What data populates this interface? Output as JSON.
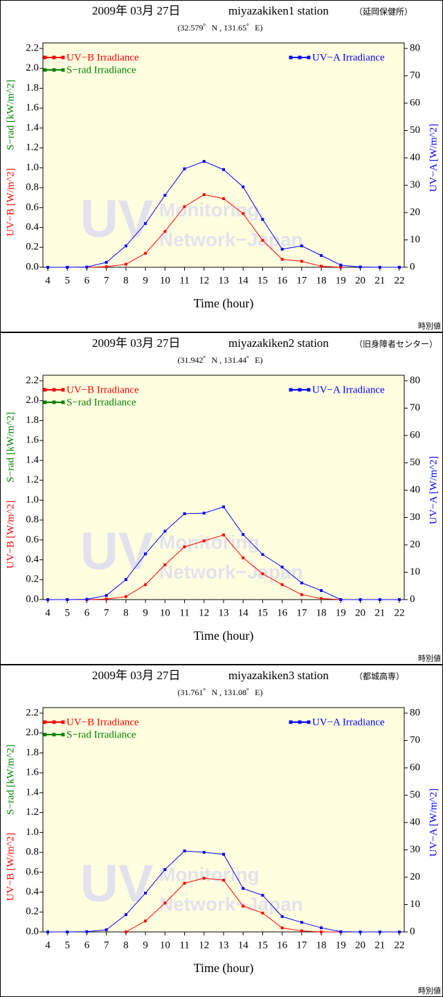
{
  "chart_data": [
    {
      "type": "line",
      "title_date": "2009年 03月 27日",
      "title_station": "miyazakiken1 station",
      "title_site": "（延岡保健所）",
      "subtitle": "(32.579゜N , 131.65゜E)",
      "xlabel": "Time (hour)",
      "ylabel": "UV−B [W/m^2]",
      "ylabel2": "S−rad [kW/m^2]",
      "y2label": "UV−A [W/m^2]",
      "corner_note": "時別値",
      "watermark": [
        "UV",
        "Monitoring",
        "Network−Japan"
      ],
      "x": [
        4,
        5,
        6,
        7,
        8,
        9,
        10,
        11,
        12,
        13,
        14,
        15,
        16,
        17,
        18,
        19,
        20,
        21,
        22
      ],
      "xlim": [
        3.75,
        22.25
      ],
      "xticks": [
        4,
        5,
        6,
        7,
        8,
        9,
        10,
        11,
        12,
        13,
        14,
        15,
        16,
        17,
        18,
        19,
        20,
        21,
        22
      ],
      "ylim": [
        0,
        2.2
      ],
      "yticks": [
        {
          "value": 0,
          "label": "0.0"
        },
        0.2,
        0.4,
        0.6,
        0.8,
        {
          "value": 1,
          "label": "1.0"
        },
        1.2,
        1.4,
        1.6,
        1.8,
        {
          "value": 2,
          "label": "2.0"
        },
        2.2
      ],
      "y2lim": [
        0,
        80
      ],
      "y2ticks": [
        0,
        10,
        20,
        30,
        40,
        50,
        60,
        70,
        80
      ],
      "series": [
        {
          "name": "UV−B Irradiance",
          "color": "#ff0000",
          "axis": "y",
          "values": [
            0,
            0,
            0,
            0.005,
            0.03,
            0.14,
            0.36,
            0.61,
            0.73,
            0.69,
            0.54,
            0.27,
            0.08,
            0.06,
            0.01,
            0,
            null,
            null,
            null
          ]
        },
        {
          "name": "S−rad Irradiance",
          "color": "#008000",
          "axis": "y",
          "values": [
            null,
            null,
            null,
            null,
            null,
            null,
            null,
            null,
            null,
            null,
            null,
            null,
            null,
            null,
            null,
            null,
            null,
            null,
            null
          ]
        },
        {
          "name": "UV−A Irradiance",
          "color": "#0000ff",
          "axis": "y2",
          "values": [
            0,
            0,
            0.1,
            1.8,
            7.8,
            16,
            26.3,
            36,
            38.7,
            35.7,
            29.4,
            17.5,
            6.6,
            7.8,
            4.3,
            0.8,
            0.1,
            0,
            0
          ]
        }
      ]
    },
    {
      "type": "line",
      "title_date": "2009年 03月 27日",
      "title_station": "miyazakiken2 station",
      "title_site": "（旧身障者センター）",
      "subtitle": "(31.942゜N , 131.44゜E)",
      "xlabel": "Time (hour)",
      "ylabel": "UV−B [W/m^2]",
      "ylabel2": "S−rad [kW/m^2]",
      "y2label": "UV−A [W/m^2]",
      "corner_note": "時別値",
      "watermark": [
        "UV",
        "Monitoring",
        "Network−Japan"
      ],
      "x": [
        4,
        5,
        6,
        7,
        8,
        9,
        10,
        11,
        12,
        13,
        14,
        15,
        16,
        17,
        18,
        19,
        20,
        21,
        22
      ],
      "xlim": [
        3.75,
        22.25
      ],
      "xticks": [
        4,
        5,
        6,
        7,
        8,
        9,
        10,
        11,
        12,
        13,
        14,
        15,
        16,
        17,
        18,
        19,
        20,
        21,
        22
      ],
      "ylim": [
        0,
        2.2
      ],
      "yticks": [
        {
          "value": 0,
          "label": "0.0"
        },
        0.2,
        0.4,
        0.6,
        0.8,
        {
          "value": 1,
          "label": "1.0"
        },
        1.2,
        1.4,
        1.6,
        1.8,
        {
          "value": 2,
          "label": "2.0"
        },
        2.2
      ],
      "y2lim": [
        0,
        80
      ],
      "y2ticks": [
        0,
        10,
        20,
        30,
        40,
        50,
        60,
        70,
        80
      ],
      "series": [
        {
          "name": "UV−B Irradiance",
          "color": "#ff0000",
          "axis": "y",
          "values": [
            0,
            0,
            0,
            0.005,
            0.03,
            0.15,
            0.35,
            0.53,
            0.59,
            0.65,
            0.42,
            0.26,
            0.15,
            0.05,
            0.01,
            0,
            null,
            null,
            null
          ]
        },
        {
          "name": "S−rad Irradiance",
          "color": "#008000",
          "axis": "y",
          "values": [
            null,
            null,
            null,
            null,
            null,
            null,
            null,
            null,
            null,
            null,
            null,
            null,
            null,
            null,
            null,
            null,
            null,
            null,
            null
          ]
        },
        {
          "name": "UV−A Irradiance",
          "color": "#0000ff",
          "axis": "y2",
          "values": [
            0,
            0,
            0.1,
            1.5,
            7.3,
            16.7,
            25,
            31.4,
            31.6,
            33.9,
            23.8,
            16.5,
            11.9,
            6.1,
            3.3,
            0,
            0,
            0,
            0
          ]
        }
      ]
    },
    {
      "type": "line",
      "title_date": "2009年 03月 27日",
      "title_station": "miyazakiken3 station",
      "title_site": "（都城高専）",
      "subtitle": "(31.761゜N , 131.08゜E)",
      "xlabel": "Time (hour)",
      "ylabel": "UV−B [W/m^2]",
      "ylabel2": "S−rad [kW/m^2]",
      "y2label": "UV−A [W/m^2]",
      "corner_note": "時別値",
      "watermark": [
        "UV",
        "Monitoring",
        "Network−Japan"
      ],
      "x": [
        4,
        5,
        6,
        7,
        8,
        9,
        10,
        11,
        12,
        13,
        14,
        15,
        16,
        17,
        18,
        19,
        20,
        21,
        22
      ],
      "xlim": [
        3.75,
        22.25
      ],
      "xticks": [
        4,
        5,
        6,
        7,
        8,
        9,
        10,
        11,
        12,
        13,
        14,
        15,
        16,
        17,
        18,
        19,
        20,
        21,
        22
      ],
      "ylim": [
        0,
        2.2
      ],
      "yticks": [
        {
          "value": 0,
          "label": "0.0"
        },
        0.2,
        0.4,
        0.6,
        0.8,
        {
          "value": 1,
          "label": "1.0"
        },
        1.2,
        1.4,
        1.6,
        1.8,
        {
          "value": 2,
          "label": "2.0"
        },
        2.2
      ],
      "y2lim": [
        0,
        80
      ],
      "y2ticks": [
        0,
        10,
        20,
        30,
        40,
        50,
        60,
        70,
        80
      ],
      "series": [
        {
          "name": "UV−B Irradiance",
          "color": "#ff0000",
          "axis": "y",
          "values": [
            null,
            null,
            null,
            null,
            0,
            0.11,
            0.29,
            0.49,
            0.54,
            0.52,
            0.26,
            0.19,
            0.04,
            0.01,
            0,
            0,
            null,
            null,
            null
          ]
        },
        {
          "name": "S−rad Irradiance",
          "color": "#008000",
          "axis": "y",
          "values": [
            null,
            null,
            null,
            null,
            null,
            null,
            null,
            null,
            null,
            null,
            null,
            null,
            null,
            null,
            null,
            null,
            null,
            null,
            null
          ]
        },
        {
          "name": "UV−A Irradiance",
          "color": "#0000ff",
          "axis": "y2",
          "values": [
            0,
            0,
            0.1,
            0.8,
            6.3,
            14.2,
            22.8,
            29.6,
            29.1,
            28.4,
            15.9,
            13.4,
            5.6,
            3.5,
            1.5,
            0.1,
            0,
            0,
            0
          ]
        }
      ]
    }
  ]
}
